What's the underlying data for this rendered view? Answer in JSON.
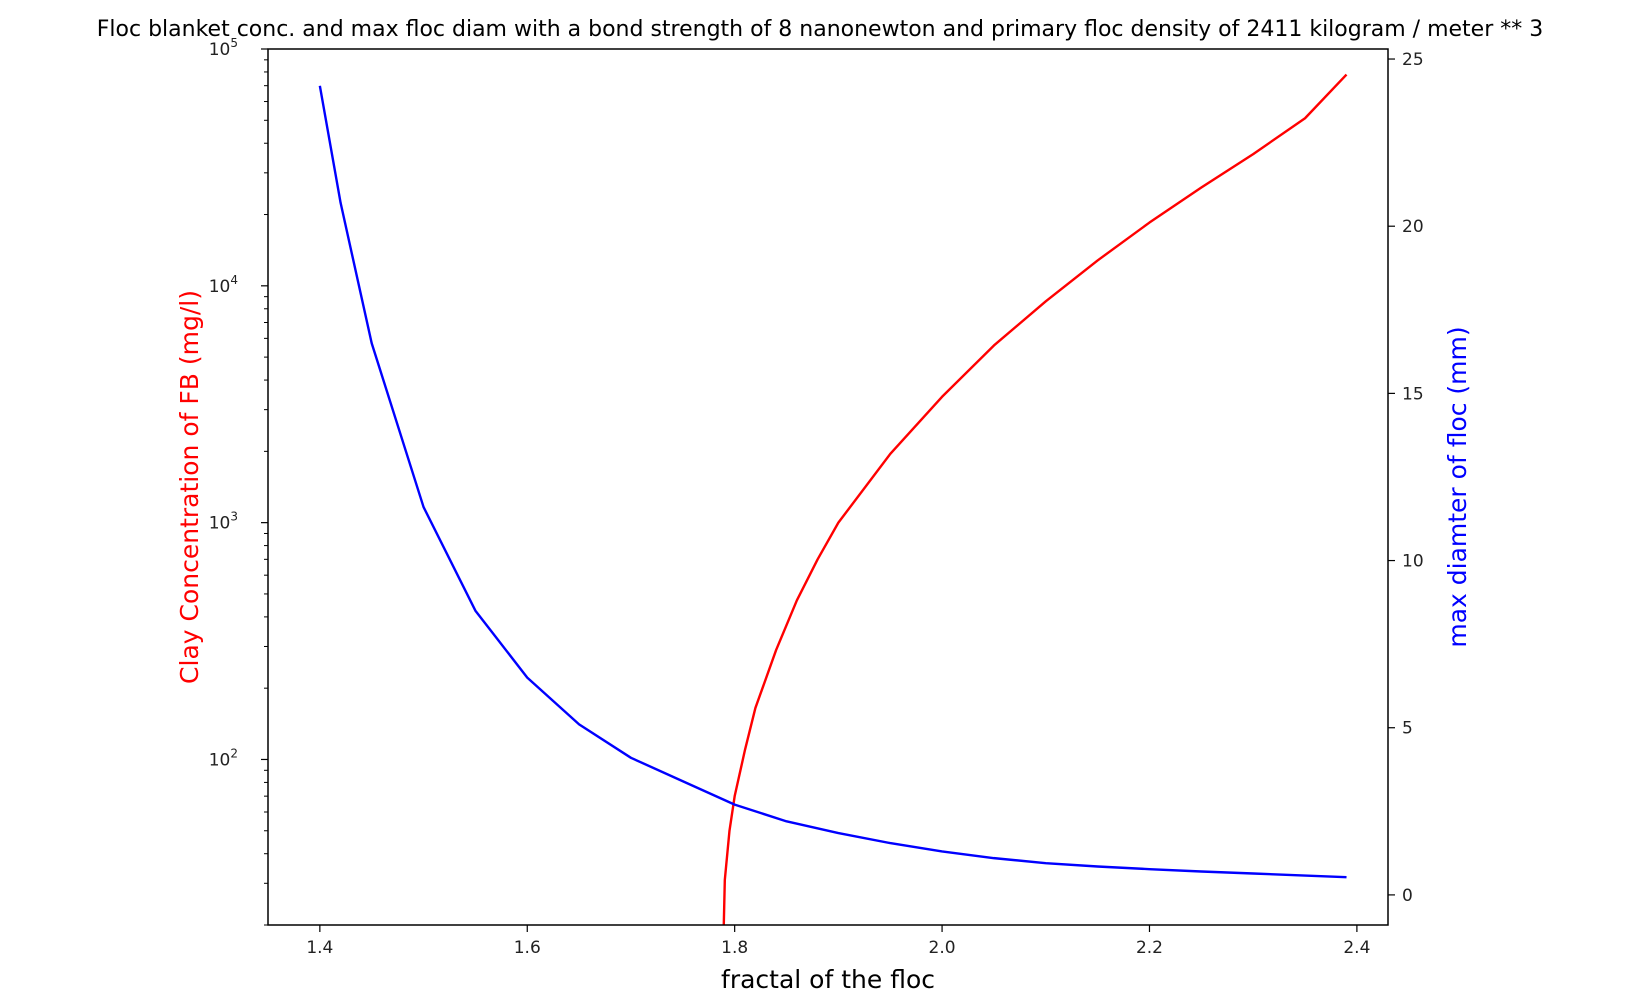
{
  "chart_data": {
    "type": "line",
    "title": "Floc blanket conc. and max floc diam with a bond strength of 8 nanonewton and primary floc density of 2411 kilogram / meter ** 3",
    "xlabel": "fractal of the floc",
    "ylabel_left": "Clay Concentration of FB (mg/l)",
    "ylabel_right": "max diamter of floc (mm)",
    "xlim": [
      1.35,
      2.43
    ],
    "ylim_left": [
      20,
      100000
    ],
    "yscale_left": "log",
    "ylim_right": [
      -0.9,
      25.3
    ],
    "x_ticks": [
      "1.4",
      "1.6",
      "1.8",
      "2.0",
      "2.2",
      "2.4"
    ],
    "y_ticks_left": [
      {
        "base": "10",
        "exp": "2",
        "value": 100
      },
      {
        "base": "10",
        "exp": "3",
        "value": 1000
      },
      {
        "base": "10",
        "exp": "4",
        "value": 10000
      },
      {
        "base": "10",
        "exp": "5",
        "value": 100000
      }
    ],
    "y_ticks_right": [
      "0",
      "5",
      "10",
      "15",
      "20",
      "25"
    ],
    "grid": false,
    "colors": {
      "left_series": "#ff0000",
      "right_series": "#0000ff",
      "axes": "#000000"
    },
    "series": [
      {
        "axis": "left",
        "color": "#ff0000",
        "x": [
          1.7895,
          1.7905,
          1.795,
          1.8,
          1.81,
          1.82,
          1.84,
          1.86,
          1.88,
          1.9,
          1.95,
          2.0,
          2.05,
          2.1,
          2.15,
          2.2,
          2.25,
          2.3,
          2.35,
          2.39
        ],
        "y": [
          20,
          31,
          50,
          70,
          110,
          165,
          290,
          470,
          700,
          1000,
          1950,
          3400,
          5600,
          8600,
          12800,
          18500,
          26000,
          36000,
          51000,
          78000
        ]
      },
      {
        "axis": "right",
        "color": "#0000ff",
        "x": [
          1.4,
          1.42,
          1.45,
          1.5,
          1.55,
          1.6,
          1.65,
          1.7,
          1.75,
          1.8,
          1.85,
          1.9,
          1.95,
          2.0,
          2.05,
          2.1,
          2.15,
          2.2,
          2.25,
          2.3,
          2.35,
          2.39
        ],
        "y": [
          24.2,
          20.7,
          16.5,
          11.6,
          8.5,
          6.5,
          5.1,
          4.1,
          3.4,
          2.7,
          2.2,
          1.85,
          1.55,
          1.3,
          1.1,
          0.95,
          0.85,
          0.77,
          0.7,
          0.64,
          0.58,
          0.53
        ]
      }
    ]
  }
}
